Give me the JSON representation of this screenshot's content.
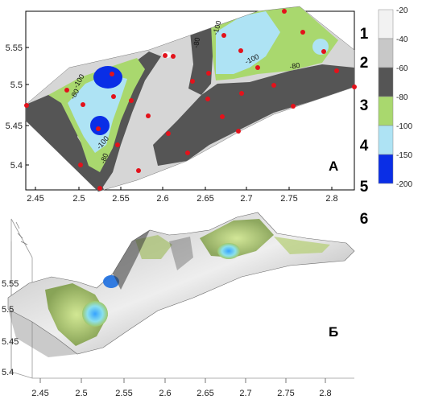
{
  "panel_a": {
    "label": "А",
    "x_ticks": [
      "2.45",
      "2.5",
      "2.55",
      "2.6",
      "2.65",
      "2.7",
      "2.75",
      "2.8"
    ],
    "y_ticks": [
      "5.55",
      "5.5",
      "5.45",
      "5.4"
    ],
    "contour_labels": [
      "-100",
      "-80",
      "-100",
      "-80",
      "-80",
      "-100",
      "-100",
      "-80"
    ]
  },
  "panel_b": {
    "label": "Б",
    "x_ticks": [
      "2.45",
      "2.5",
      "2.55",
      "2.6",
      "2.65",
      "2.7",
      "2.75",
      "2.8"
    ],
    "y_ticks": [
      "5.55",
      "5.5",
      "5.45",
      "5.4"
    ]
  },
  "legend": {
    "ticks": [
      "-20",
      "-40",
      "-60",
      "-80",
      "-100",
      "-150",
      "-200"
    ],
    "colors": [
      "#f2f2f2",
      "#c8c8c8",
      "#555555",
      "#a9d86e",
      "#aee3f4",
      "#0a2ee6"
    ],
    "classes": [
      "1",
      "2",
      "3",
      "4",
      "5",
      "6"
    ]
  },
  "colors": {
    "frame": "#000000",
    "points": "#e3121b"
  }
}
